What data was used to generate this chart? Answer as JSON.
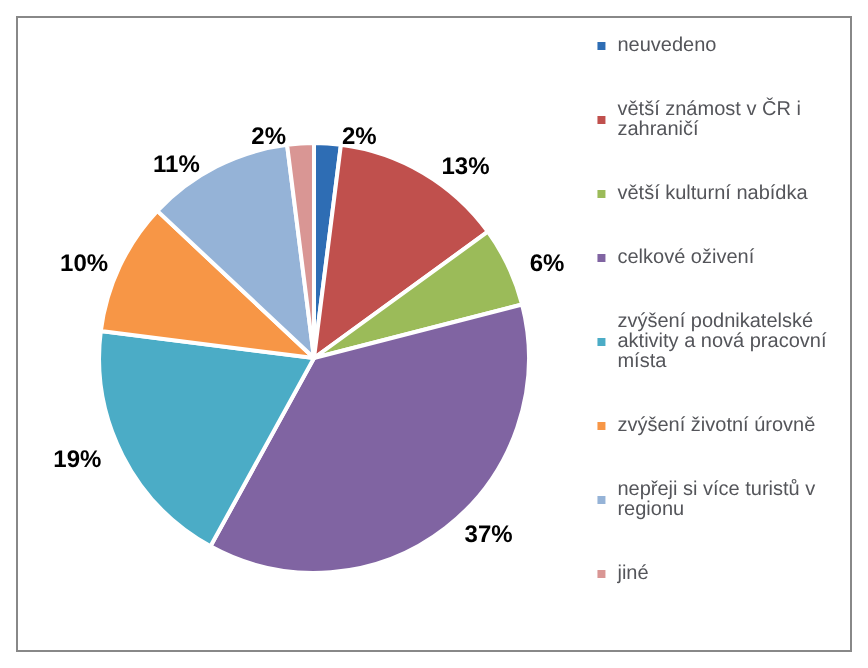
{
  "chart_data": {
    "type": "pie",
    "categories": [
      "neuvedeno",
      "větší známost v ČR i zahraničí",
      "větší kulturní nabídka",
      "celkové oživení",
      "zvýšení podnikatelské aktivity a nová pracovní místa",
      "zvýšení životní úrovně",
      "nepřeji si více turistů v regionu",
      "jiné"
    ],
    "values": [
      2,
      13,
      6,
      37,
      19,
      10,
      11,
      2
    ],
    "value_labels": [
      "2%",
      "13%",
      "6%",
      "37%",
      "19%",
      "10%",
      "11%",
      "2%"
    ],
    "colors": [
      "#2e6db4",
      "#c0504d",
      "#9bbb59",
      "#8064a2",
      "#4bacc6",
      "#f79646",
      "#95b3d7",
      "#d99694"
    ],
    "legend": "right"
  }
}
